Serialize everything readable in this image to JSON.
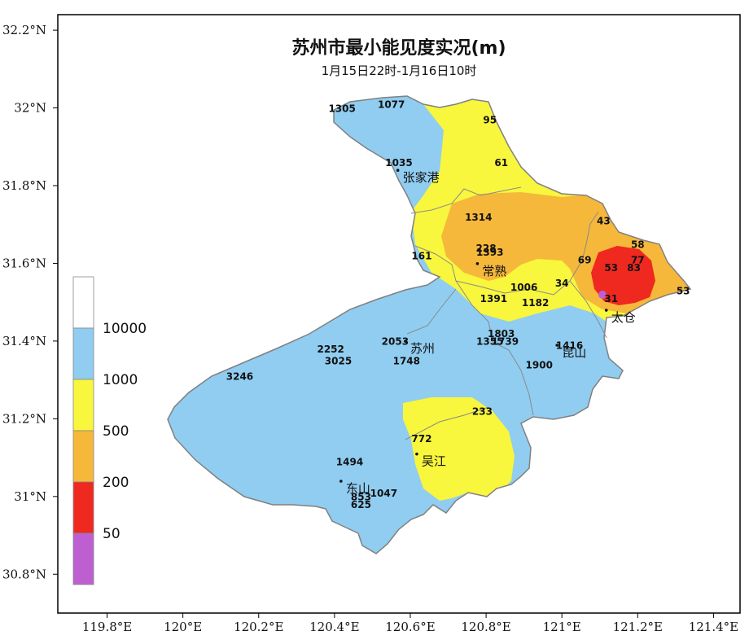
{
  "title": "苏州市最小能见度实况(m)",
  "subtitle": "1月15日22时-1月16日10时",
  "axes": {
    "x_ticks": [
      {
        "label": "119.8°E",
        "lon": 119.8
      },
      {
        "label": "120°E",
        "lon": 120.0
      },
      {
        "label": "120.2°E",
        "lon": 120.2
      },
      {
        "label": "120.4°E",
        "lon": 120.4
      },
      {
        "label": "120.6°E",
        "lon": 120.6
      },
      {
        "label": "120.8°E",
        "lon": 120.8
      },
      {
        "label": "121°E",
        "lon": 121.0
      },
      {
        "label": "121.2°E",
        "lon": 121.2
      },
      {
        "label": "121.4°E",
        "lon": 121.4
      }
    ],
    "y_ticks": [
      {
        "label": "32.2°N",
        "lat": 32.2
      },
      {
        "label": "32°N",
        "lat": 32.0
      },
      {
        "label": "31.8°N",
        "lat": 31.8
      },
      {
        "label": "31.6°N",
        "lat": 31.6
      },
      {
        "label": "31.4°N",
        "lat": 31.4
      },
      {
        "label": "31.2°N",
        "lat": 31.2
      },
      {
        "label": "31°N",
        "lat": 31.0
      },
      {
        "label": "30.8°N",
        "lat": 30.8
      }
    ],
    "lon_range": [
      119.67,
      121.47
    ],
    "lat_range": [
      30.7,
      32.24
    ]
  },
  "legend": [
    {
      "label": "",
      "color": "#ffffff"
    },
    {
      "label": "10000",
      "color": "#90cdf1"
    },
    {
      "label": "1000",
      "color": "#f8f63d"
    },
    {
      "label": "500",
      "color": "#f6b83b"
    },
    {
      "label": "200",
      "color": "#ef2820"
    },
    {
      "label": "50",
      "color": "#bd5fd0"
    }
  ],
  "colors": {
    "blue": "#90cdf1",
    "yellow": "#f8f63d",
    "orange": "#f6b83b",
    "red": "#ef2820",
    "purple": "#bd5fd0",
    "border": "#808080"
  },
  "cities": [
    {
      "name": "张家港",
      "lon": 120.58,
      "lat": 31.81
    },
    {
      "name": "常熟",
      "lon": 120.79,
      "lat": 31.57
    },
    {
      "name": "太仓",
      "lon": 121.13,
      "lat": 31.45
    },
    {
      "name": "苏州",
      "lon": 120.6,
      "lat": 31.37
    },
    {
      "name": "昆山",
      "lon": 121.0,
      "lat": 31.36
    },
    {
      "name": "吴江",
      "lon": 120.63,
      "lat": 31.08
    },
    {
      "name": "东山",
      "lon": 120.43,
      "lat": 31.01
    }
  ],
  "stations": [
    {
      "value": "1305",
      "lon": 120.42,
      "lat": 31.99
    },
    {
      "value": "1077",
      "lon": 120.55,
      "lat": 32.0
    },
    {
      "value": "95",
      "lon": 120.81,
      "lat": 31.96
    },
    {
      "value": "1035",
      "lon": 120.57,
      "lat": 31.85
    },
    {
      "value": "61",
      "lon": 120.84,
      "lat": 31.85
    },
    {
      "value": "1314",
      "lon": 120.78,
      "lat": 31.71
    },
    {
      "value": "43",
      "lon": 121.11,
      "lat": 31.7
    },
    {
      "value": "58",
      "lon": 121.2,
      "lat": 31.64
    },
    {
      "value": "228",
      "lon": 120.8,
      "lat": 31.63
    },
    {
      "value": "1393",
      "lon": 120.81,
      "lat": 31.62
    },
    {
      "value": "161",
      "lon": 120.63,
      "lat": 31.61
    },
    {
      "value": "69",
      "lon": 121.06,
      "lat": 31.6
    },
    {
      "value": "53",
      "lon": 121.13,
      "lat": 31.58
    },
    {
      "value": "83",
      "lon": 121.19,
      "lat": 31.58
    },
    {
      "value": "77",
      "lon": 121.2,
      "lat": 31.6
    },
    {
      "value": "53",
      "lon": 121.32,
      "lat": 31.52
    },
    {
      "value": "1006",
      "lon": 120.9,
      "lat": 31.53
    },
    {
      "value": "34",
      "lon": 121.0,
      "lat": 31.54
    },
    {
      "value": "1391",
      "lon": 120.82,
      "lat": 31.5
    },
    {
      "value": "1182",
      "lon": 120.93,
      "lat": 31.49
    },
    {
      "value": "31",
      "lon": 121.13,
      "lat": 31.5
    },
    {
      "value": "1803",
      "lon": 120.84,
      "lat": 31.41
    },
    {
      "value": "1355",
      "lon": 120.81,
      "lat": 31.39
    },
    {
      "value": "1739",
      "lon": 120.85,
      "lat": 31.39
    },
    {
      "value": "2053",
      "lon": 120.56,
      "lat": 31.39
    },
    {
      "value": "1416",
      "lon": 121.02,
      "lat": 31.38
    },
    {
      "value": "2252",
      "lon": 120.39,
      "lat": 31.37
    },
    {
      "value": "3025",
      "lon": 120.41,
      "lat": 31.34
    },
    {
      "value": "1748",
      "lon": 120.59,
      "lat": 31.34
    },
    {
      "value": "1900",
      "lon": 120.94,
      "lat": 31.33
    },
    {
      "value": "3246",
      "lon": 120.15,
      "lat": 31.3
    },
    {
      "value": "233",
      "lon": 120.79,
      "lat": 31.21
    },
    {
      "value": "772",
      "lon": 120.63,
      "lat": 31.14
    },
    {
      "value": "1494",
      "lon": 120.44,
      "lat": 31.08
    },
    {
      "value": "1047",
      "lon": 120.53,
      "lat": 31.0
    },
    {
      "value": "853",
      "lon": 120.47,
      "lat": 30.99
    },
    {
      "value": "625",
      "lon": 120.47,
      "lat": 30.97
    }
  ]
}
